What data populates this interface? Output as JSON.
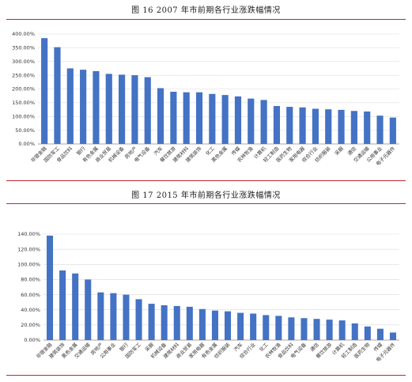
{
  "captions": {
    "figure1": "图 16   2007 年市前期各行业涨跌幅情况",
    "figure2": "图 17   2015 年市前期各行业涨跌幅情况"
  },
  "colors": {
    "bar": "#4472c4",
    "rule": "#c0282d",
    "grid": "#d9d9d9"
  },
  "chart_data": [
    {
      "type": "bar",
      "title": "2007 年市前期各行业涨跌幅情况",
      "categories": [
        "非银金融",
        "国防军工",
        "食品饮料",
        "银行",
        "有色金属",
        "商业贸易",
        "机械设备",
        "房地产",
        "电气设备",
        "汽车",
        "餐饮旅游",
        "建筑材料",
        "建筑装饰",
        "化工",
        "黑色金属",
        "传媒",
        "农林牧渔",
        "计算机",
        "轻工制造",
        "医药生物",
        "家用电器",
        "综合行业",
        "纺织服装",
        "采掘",
        "通信",
        "交通运输",
        "公用事业",
        "电子元器件"
      ],
      "values": [
        385,
        352,
        275,
        270,
        265,
        255,
        252,
        250,
        243,
        203,
        190,
        188,
        188,
        182,
        178,
        173,
        165,
        160,
        138,
        135,
        133,
        128,
        126,
        124,
        120,
        118,
        103,
        96
      ],
      "ylim": [
        0,
        400
      ],
      "yticks": [
        "0.00%",
        "50.00%",
        "100.00%",
        "150.00%",
        "200.00%",
        "250.00%",
        "300.00%",
        "350.00%",
        "400.00%"
      ],
      "xlabel": "",
      "ylabel": "",
      "grid": true
    },
    {
      "type": "bar",
      "title": "2015 年市前期各行业涨跌幅情况",
      "categories": [
        "非银金融",
        "建筑装饰",
        "黑色金属",
        "交通运输",
        "房地产",
        "公用事业",
        "银行",
        "国防军工",
        "采掘",
        "机械设备",
        "建筑材料",
        "商业贸易",
        "家用电器",
        "有色金属",
        "纺织服装",
        "汽车",
        "综合行业",
        "化工",
        "农林牧渔",
        "食品饮料",
        "电气设备",
        "通信",
        "餐饮旅游",
        "计算机",
        "轻工制造",
        "医药生物",
        "传媒",
        "电子元器件"
      ],
      "values": [
        138,
        92,
        88,
        80,
        63,
        62,
        60,
        54,
        48,
        46,
        45,
        44,
        41,
        39,
        38,
        36,
        35,
        33,
        32,
        30,
        29,
        28,
        27,
        26,
        22,
        18,
        15,
        10
      ],
      "ylim": [
        0,
        140
      ],
      "yticks": [
        "0.00%",
        "20.00%",
        "40.00%",
        "60.00%",
        "80.00%",
        "100.00%",
        "120.00%",
        "140.00%"
      ],
      "xlabel": "",
      "ylabel": "",
      "grid": true
    }
  ]
}
